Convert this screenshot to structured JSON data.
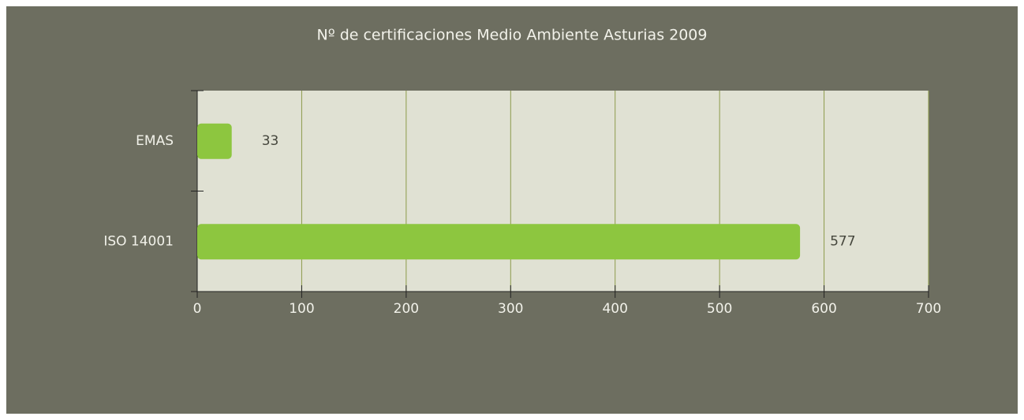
{
  "chart_data": {
    "type": "bar",
    "orientation": "horizontal",
    "title": "Nº de certificaciones Medio Ambiente Asturias 2009",
    "categories": [
      "EMAS",
      "ISO 14001"
    ],
    "values": [
      33,
      577
    ],
    "color": "#8dc63f",
    "xlim": [
      0,
      700
    ],
    "xticks": [
      0,
      100,
      200,
      300,
      400,
      500,
      600,
      700
    ],
    "grid": true
  }
}
